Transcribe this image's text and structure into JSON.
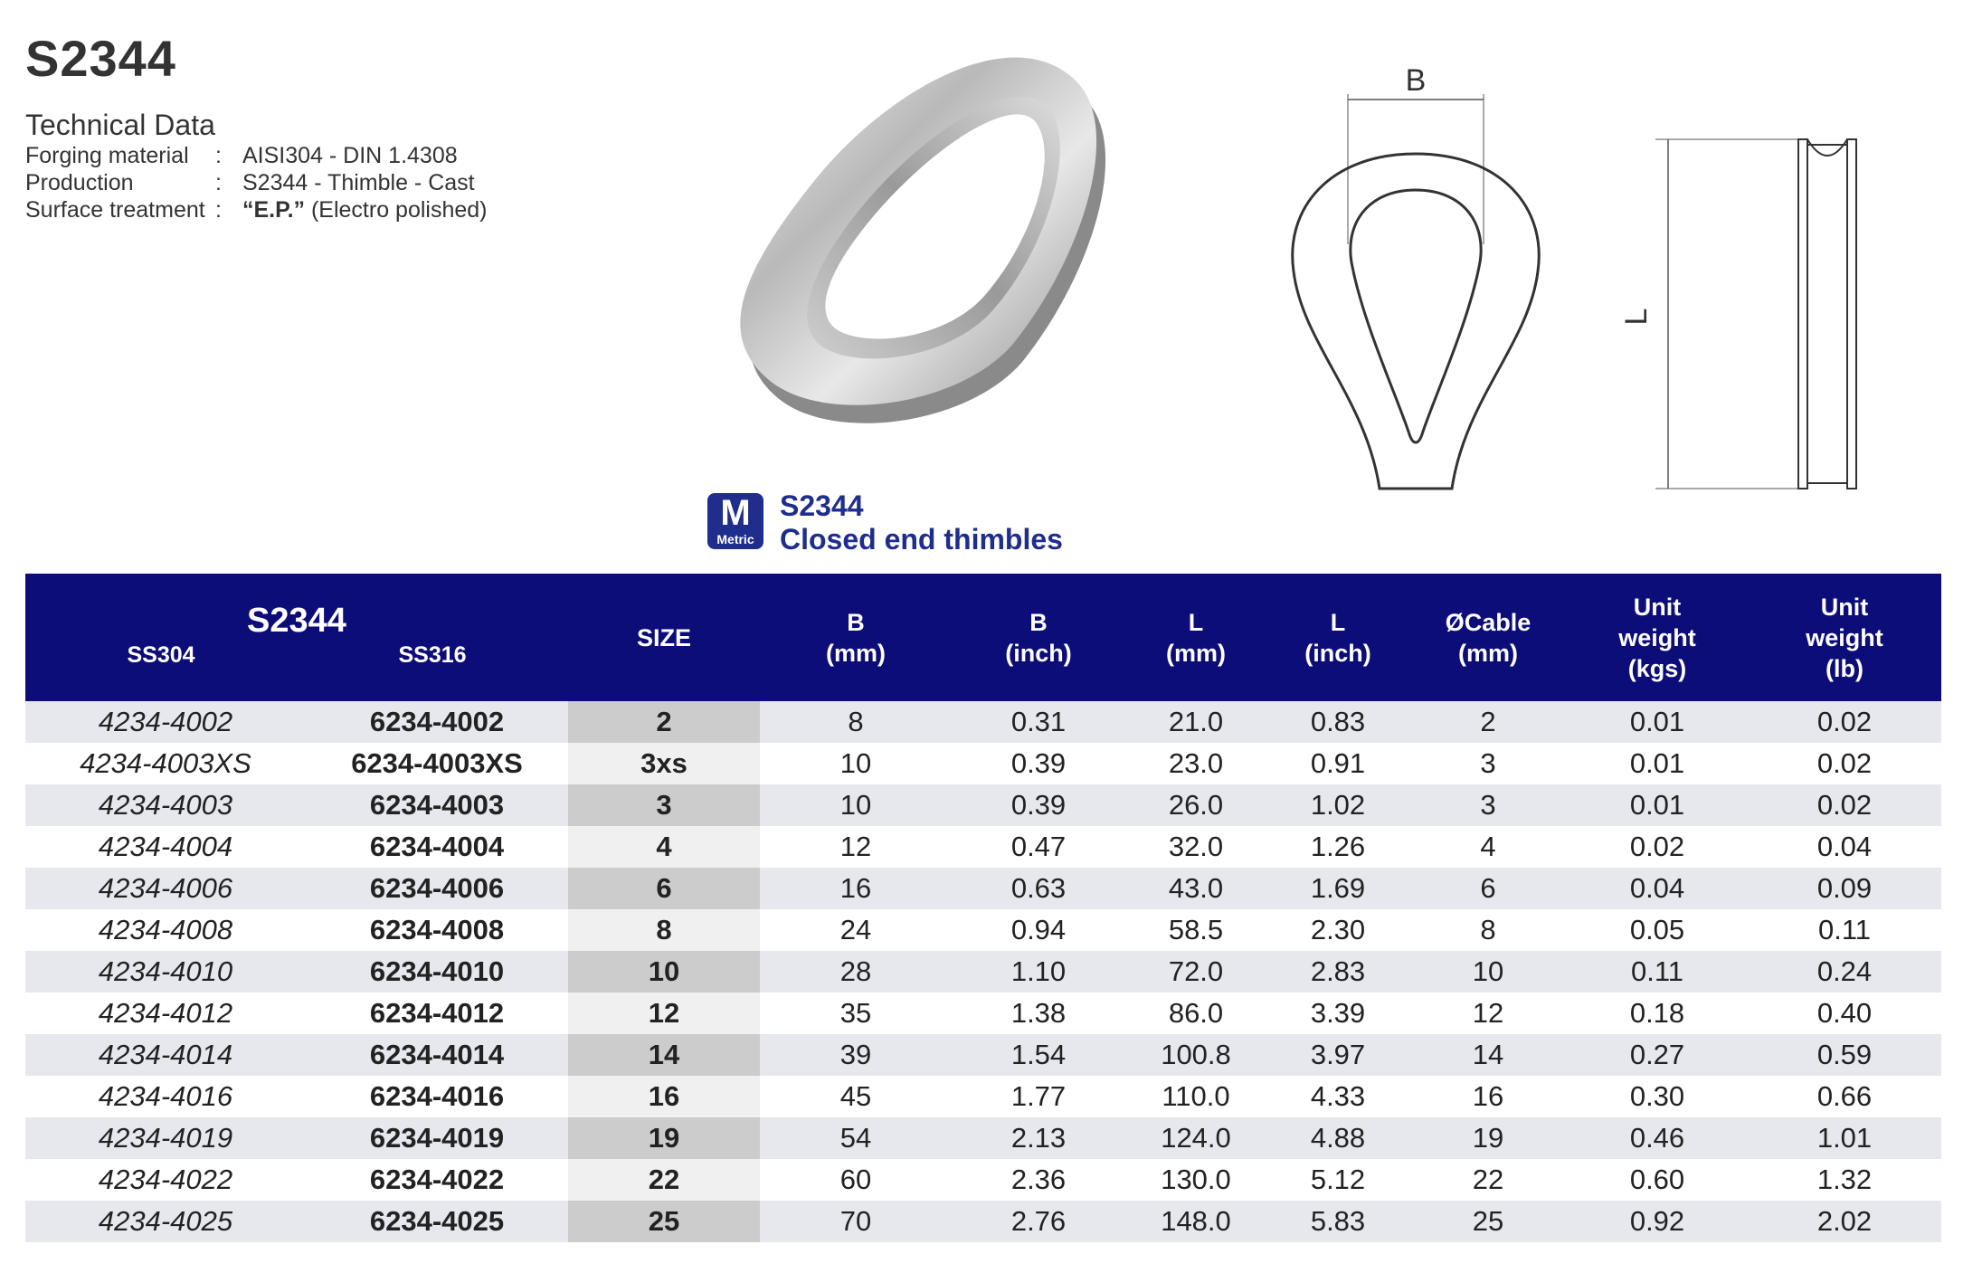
{
  "title": "S2344",
  "subtitle": "Technical Data",
  "specs": [
    {
      "label": "Forging material",
      "colon": ":",
      "value": "AISI304 - DIN 1.4308"
    },
    {
      "label": "Production",
      "colon": ":",
      "value": "S2344 - Thimble - Cast"
    },
    {
      "label": "Surface treatment",
      "colon": ":",
      "value_bold": "“E.P.”",
      "value": " (Electro polished)"
    }
  ],
  "drawing": {
    "b_label": "B",
    "l_label": "L"
  },
  "badge": {
    "letter": "M",
    "text": "Metric",
    "color": "#1f2d8c"
  },
  "product": {
    "code": "S2344",
    "name": "Closed end thimbles"
  },
  "table": {
    "header": {
      "group": "S2344",
      "ss304": "SS304",
      "ss316": "SS316",
      "size": "SIZE",
      "b_mm": [
        "B",
        "(mm)"
      ],
      "b_inch": [
        "B",
        "(inch)"
      ],
      "l_mm": [
        "L",
        "(mm)"
      ],
      "l_inch": [
        "L",
        "(inch)"
      ],
      "cable": [
        "ØCable",
        "(mm)"
      ],
      "kgs": [
        "Unit",
        "weight",
        "(kgs)"
      ],
      "lb": [
        "Unit",
        "weight",
        "(lb)"
      ]
    },
    "header_color": "#0d0d7a",
    "rows": [
      [
        "4234-4002",
        "6234-4002",
        "2",
        "8",
        "0.31",
        "21.0",
        "0.83",
        "2",
        "0.01",
        "0.02"
      ],
      [
        "4234-4003XS",
        "6234-4003XS",
        "3xs",
        "10",
        "0.39",
        "23.0",
        "0.91",
        "3",
        "0.01",
        "0.02"
      ],
      [
        "4234-4003",
        "6234-4003",
        "3",
        "10",
        "0.39",
        "26.0",
        "1.02",
        "3",
        "0.01",
        "0.02"
      ],
      [
        "4234-4004",
        "6234-4004",
        "4",
        "12",
        "0.47",
        "32.0",
        "1.26",
        "4",
        "0.02",
        "0.04"
      ],
      [
        "4234-4006",
        "6234-4006",
        "6",
        "16",
        "0.63",
        "43.0",
        "1.69",
        "6",
        "0.04",
        "0.09"
      ],
      [
        "4234-4008",
        "6234-4008",
        "8",
        "24",
        "0.94",
        "58.5",
        "2.30",
        "8",
        "0.05",
        "0.11"
      ],
      [
        "4234-4010",
        "6234-4010",
        "10",
        "28",
        "1.10",
        "72.0",
        "2.83",
        "10",
        "0.11",
        "0.24"
      ],
      [
        "4234-4012",
        "6234-4012",
        "12",
        "35",
        "1.38",
        "86.0",
        "3.39",
        "12",
        "0.18",
        "0.40"
      ],
      [
        "4234-4014",
        "6234-4014",
        "14",
        "39",
        "1.54",
        "100.8",
        "3.97",
        "14",
        "0.27",
        "0.59"
      ],
      [
        "4234-4016",
        "6234-4016",
        "16",
        "45",
        "1.77",
        "110.0",
        "4.33",
        "16",
        "0.30",
        "0.66"
      ],
      [
        "4234-4019",
        "6234-4019",
        "19",
        "54",
        "2.13",
        "124.0",
        "4.88",
        "19",
        "0.46",
        "1.01"
      ],
      [
        "4234-4022",
        "6234-4022",
        "22",
        "60",
        "2.36",
        "130.0",
        "5.12",
        "22",
        "0.60",
        "1.32"
      ],
      [
        "4234-4025",
        "6234-4025",
        "25",
        "70",
        "2.76",
        "148.0",
        "5.83",
        "25",
        "0.92",
        "2.02"
      ]
    ]
  }
}
